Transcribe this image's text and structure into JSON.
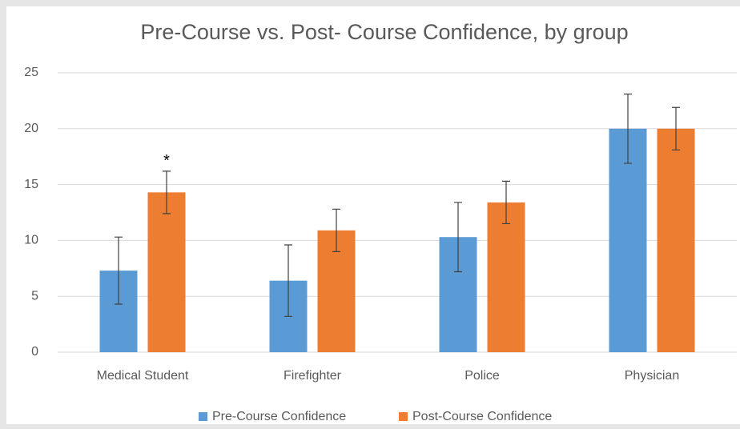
{
  "chart_data": {
    "type": "bar",
    "title": "Pre-Course vs. Post- Course Confidence, by group",
    "categories": [
      "Medical Student",
      "Firefighter",
      "Police",
      "Physician"
    ],
    "series": [
      {
        "name": "Pre-Course Confidence",
        "color": "#5b9bd5",
        "values": [
          7.3,
          6.4,
          10.3,
          20
        ],
        "errors": [
          3.0,
          3.2,
          3.1,
          3.1
        ]
      },
      {
        "name": "Post-Course Confidence",
        "color": "#ed7d31",
        "values": [
          14.3,
          10.9,
          13.4,
          20
        ],
        "errors": [
          1.9,
          1.9,
          1.9,
          1.9
        ]
      }
    ],
    "annotations": [
      {
        "text": "*",
        "category": "Medical Student",
        "series": "Post-Course Confidence"
      }
    ],
    "ylim": [
      0,
      25
    ],
    "yticks": [
      0,
      5,
      10,
      15,
      20,
      25
    ],
    "grid": true,
    "legend": "bottom"
  }
}
